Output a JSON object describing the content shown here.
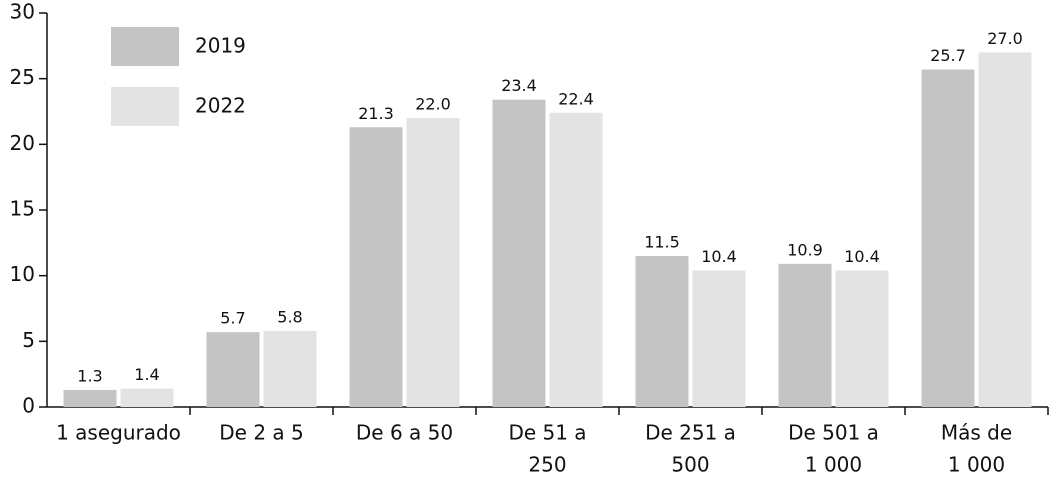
{
  "chart_data": {
    "type": "bar",
    "categories": [
      [
        "1 asegurado"
      ],
      [
        "De 2 a 5"
      ],
      [
        "De 6 a 50"
      ],
      [
        "De 51 a",
        "250"
      ],
      [
        "De 251 a",
        "500"
      ],
      [
        "De 501 a",
        "1 000"
      ],
      [
        "Más de",
        "1 000"
      ]
    ],
    "series": [
      {
        "name": "2019",
        "color": "#c4c4c4",
        "values": [
          1.3,
          5.7,
          21.3,
          23.4,
          11.5,
          10.9,
          25.7
        ],
        "value_labels": [
          "1.3",
          "5.7",
          "21.3",
          "23.4",
          "11.5",
          "10.9",
          "25.7"
        ]
      },
      {
        "name": "2022",
        "color": "#e3e3e3",
        "values": [
          1.4,
          5.8,
          22.0,
          22.4,
          10.4,
          10.4,
          27.0
        ],
        "value_labels": [
          "1.4",
          "5.8",
          "22.0",
          "22.4",
          "10.4",
          "10.4",
          "27.0"
        ]
      }
    ],
    "ylim": [
      0,
      30
    ],
    "yticks": [
      0,
      5,
      10,
      15,
      20,
      25,
      30
    ],
    "grid": false,
    "legend": "top-left"
  }
}
